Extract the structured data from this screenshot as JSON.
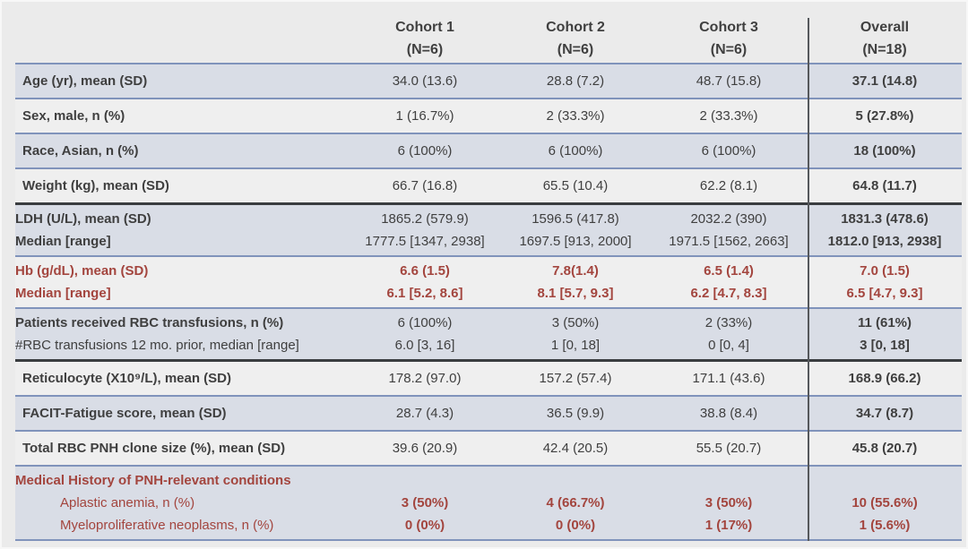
{
  "colors": {
    "page_bg": "#ebebeb",
    "shaded_row_bg": "#d9dde6",
    "plain_row_bg": "#efefef",
    "blue_rule": "#8093bb",
    "thick_rule": "#3a3d40",
    "dark_text": "#3f3f3f",
    "red_text": "#a3453e"
  },
  "header": {
    "columns": [
      {
        "line1": "Cohort 1",
        "line2": "(N=6)"
      },
      {
        "line1": "Cohort 2",
        "line2": "(N=6)"
      },
      {
        "line1": "Cohort 3",
        "line2": "(N=6)"
      },
      {
        "line1": "Overall",
        "line2": "(N=18)"
      }
    ]
  },
  "table": {
    "rows": [
      {
        "shaded": true,
        "red": false,
        "thick_bottom": false,
        "after_thick": false,
        "label_lines": [
          {
            "text": "Age (yr), mean (SD)",
            "bold": true,
            "indent": false
          }
        ],
        "values": [
          [
            "34.0 (13.6)"
          ],
          [
            "28.8 (7.2)"
          ],
          [
            "48.7 (15.8)"
          ],
          [
            "37.1 (14.8)"
          ]
        ]
      },
      {
        "shaded": false,
        "red": false,
        "thick_bottom": false,
        "after_thick": false,
        "label_lines": [
          {
            "text": "Sex, male, n (%)",
            "bold": true,
            "indent": false
          }
        ],
        "values": [
          [
            "1 (16.7%)"
          ],
          [
            "2 (33.3%)"
          ],
          [
            "2 (33.3%)"
          ],
          [
            "5 (27.8%)"
          ]
        ]
      },
      {
        "shaded": true,
        "red": false,
        "thick_bottom": false,
        "after_thick": false,
        "label_lines": [
          {
            "text": "Race, Asian, n (%)",
            "bold": true,
            "indent": false
          }
        ],
        "values": [
          [
            "6 (100%)"
          ],
          [
            "6 (100%)"
          ],
          [
            "6 (100%)"
          ],
          [
            "18 (100%)"
          ]
        ]
      },
      {
        "shaded": false,
        "red": false,
        "thick_bottom": true,
        "after_thick": false,
        "label_lines": [
          {
            "text": "Weight (kg), mean (SD)",
            "bold": true,
            "indent": false
          }
        ],
        "values": [
          [
            "66.7 (16.8)"
          ],
          [
            "65.5 (10.4)"
          ],
          [
            "62.2 (8.1)"
          ],
          [
            "64.8 (11.7)"
          ]
        ]
      },
      {
        "shaded": true,
        "red": false,
        "thick_bottom": false,
        "after_thick": true,
        "label_lines": [
          {
            "text": "LDH (U/L), mean (SD)",
            "bold": true,
            "indent": false
          },
          {
            "text": "Median [range]",
            "bold": true,
            "indent": false
          }
        ],
        "values": [
          [
            "1865.2 (579.9)",
            "1777.5 [1347, 2938]"
          ],
          [
            "1596.5 (417.8)",
            "1697.5 [913, 2000]"
          ],
          [
            "2032.2 (390)",
            "1971.5 [1562, 2663]"
          ],
          [
            "1831.3 (478.6)",
            "1812.0 [913, 2938]"
          ]
        ]
      },
      {
        "shaded": false,
        "red": true,
        "thick_bottom": false,
        "after_thick": false,
        "label_lines": [
          {
            "text": "Hb (g/dL), mean (SD)",
            "bold": true,
            "indent": false
          },
          {
            "text": "Median [range]",
            "bold": true,
            "indent": false
          }
        ],
        "values": [
          [
            "6.6 (1.5)",
            "6.1 [5.2, 8.6]"
          ],
          [
            "7.8(1.4)",
            "8.1 [5.7, 9.3]"
          ],
          [
            "6.5 (1.4)",
            "6.2 [4.7, 8.3]"
          ],
          [
            "7.0 (1.5)",
            "6.5 [4.7, 9.3]"
          ]
        ]
      },
      {
        "shaded": true,
        "red": false,
        "thick_bottom": true,
        "after_thick": false,
        "label_lines": [
          {
            "text": "Patients received RBC transfusions, n (%)",
            "bold": true,
            "indent": false
          },
          {
            "text": "#RBC transfusions 12 mo. prior, median [range]",
            "bold": false,
            "indent": false
          }
        ],
        "values": [
          [
            "6 (100%)",
            "6.0 [3, 16]"
          ],
          [
            "3 (50%)",
            "1  [0, 18]"
          ],
          [
            "2 (33%)",
            "0 [0, 4]"
          ],
          [
            "11 (61%)",
            "3 [0, 18]"
          ]
        ]
      },
      {
        "shaded": false,
        "red": false,
        "thick_bottom": false,
        "after_thick": true,
        "label_lines": [
          {
            "text": "Reticulocyte (X10⁹/L), mean (SD)",
            "bold": true,
            "indent": false
          }
        ],
        "values": [
          [
            "178.2 (97.0)"
          ],
          [
            "157.2 (57.4)"
          ],
          [
            "171.1 (43.6)"
          ],
          [
            "168.9 (66.2)"
          ]
        ]
      },
      {
        "shaded": true,
        "red": false,
        "thick_bottom": false,
        "after_thick": false,
        "label_lines": [
          {
            "text": "FACIT-Fatigue score, mean (SD)",
            "bold": true,
            "indent": false
          }
        ],
        "values": [
          [
            "28.7 (4.3)"
          ],
          [
            "36.5 (9.9)"
          ],
          [
            "38.8 (8.4)"
          ],
          [
            "34.7 (8.7)"
          ]
        ]
      },
      {
        "shaded": false,
        "red": false,
        "thick_bottom": false,
        "after_thick": false,
        "label_lines": [
          {
            "text": "Total RBC PNH clone size (%), mean (SD)",
            "bold": true,
            "indent": false
          }
        ],
        "values": [
          [
            "39.6 (20.9)"
          ],
          [
            "42.4 (20.5)"
          ],
          [
            "55.5 (20.7)"
          ],
          [
            "45.8 (20.7)"
          ]
        ]
      },
      {
        "shaded": true,
        "red": true,
        "thick_bottom": false,
        "after_thick": false,
        "last": true,
        "label_lines": [
          {
            "text": "Medical History of PNH-relevant conditions",
            "bold": true,
            "indent": false
          },
          {
            "text": "Aplastic anemia, n (%)",
            "bold": false,
            "indent": true
          },
          {
            "text": "Myeloproliferative neoplasms, n (%)",
            "bold": false,
            "indent": true
          }
        ],
        "values": [
          [
            "",
            "3 (50%)",
            "0 (0%)"
          ],
          [
            "",
            "4 (66.7%)",
            "0 (0%)"
          ],
          [
            "",
            "3 (50%)",
            "1 (17%)"
          ],
          [
            "",
            "10 (55.6%)",
            "1 (5.6%)"
          ]
        ]
      }
    ]
  }
}
